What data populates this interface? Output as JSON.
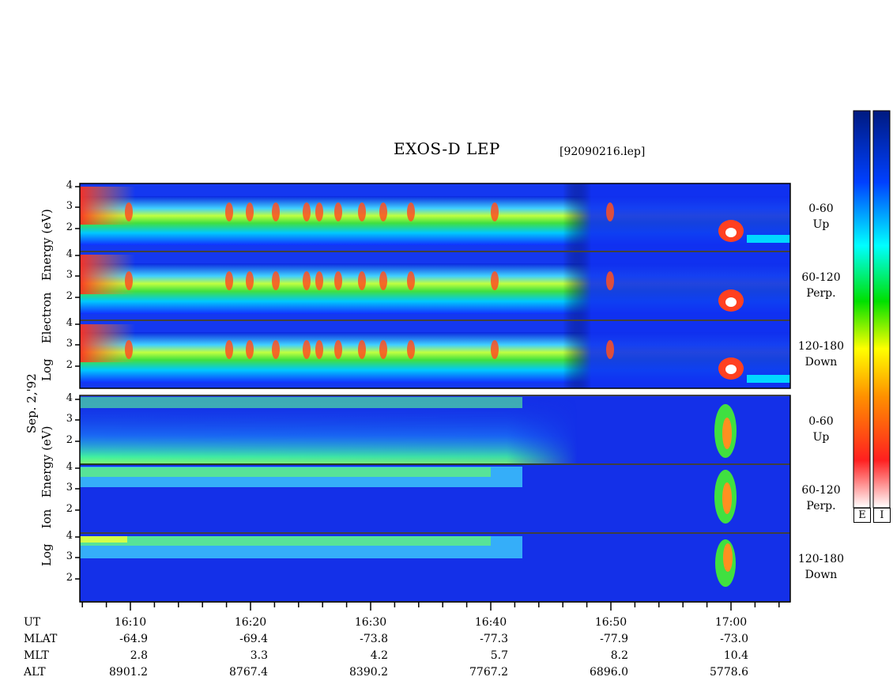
{
  "chart_data": {
    "type": "heatmap",
    "title": "EXOS-D LEP",
    "file_label": "[92090216.lep]",
    "date_label": "Sep. 2,'92",
    "electron_ylabel": [
      "Log",
      "Electron",
      "Energy",
      "(eV)"
    ],
    "ion_ylabel": [
      "Log",
      "Ion",
      "Energy",
      "(eV)"
    ],
    "yticks": [
      "4",
      "3",
      "2"
    ],
    "panels": [
      {
        "species": "electron",
        "pitch": "0-60",
        "direction": "Up"
      },
      {
        "species": "electron",
        "pitch": "60-120",
        "direction": "Perp."
      },
      {
        "species": "electron",
        "pitch": "120-180",
        "direction": "Down"
      },
      {
        "species": "ion",
        "pitch": "0-60",
        "direction": "Up"
      },
      {
        "species": "ion",
        "pitch": "60-120",
        "direction": "Perp."
      },
      {
        "species": "ion",
        "pitch": "120-180",
        "direction": "Down"
      }
    ],
    "xaxis": {
      "row_labels": [
        "UT",
        "MLAT",
        "MLT",
        "ALT"
      ],
      "ut": [
        "16:10",
        "16:20",
        "16:30",
        "16:40",
        "16:50",
        "17:00"
      ],
      "mlat": [
        "-64.9",
        "-69.4",
        "-73.8",
        "-77.3",
        "-77.9",
        "-73.0"
      ],
      "mlt": [
        "2.8",
        "3.3",
        "4.2",
        "5.7",
        "8.2",
        "10.4"
      ],
      "alt": [
        "8901.2",
        "8767.4",
        "8390.2",
        "7767.2",
        "6896.0",
        "5778.6"
      ]
    },
    "colorbar_labels": [
      "E",
      "I"
    ],
    "colormap": [
      "#ffffff",
      "#ff2020",
      "#ff8000",
      "#ffff00",
      "#00e000",
      "#00ffff",
      "#0040ff",
      "#001a80"
    ]
  }
}
